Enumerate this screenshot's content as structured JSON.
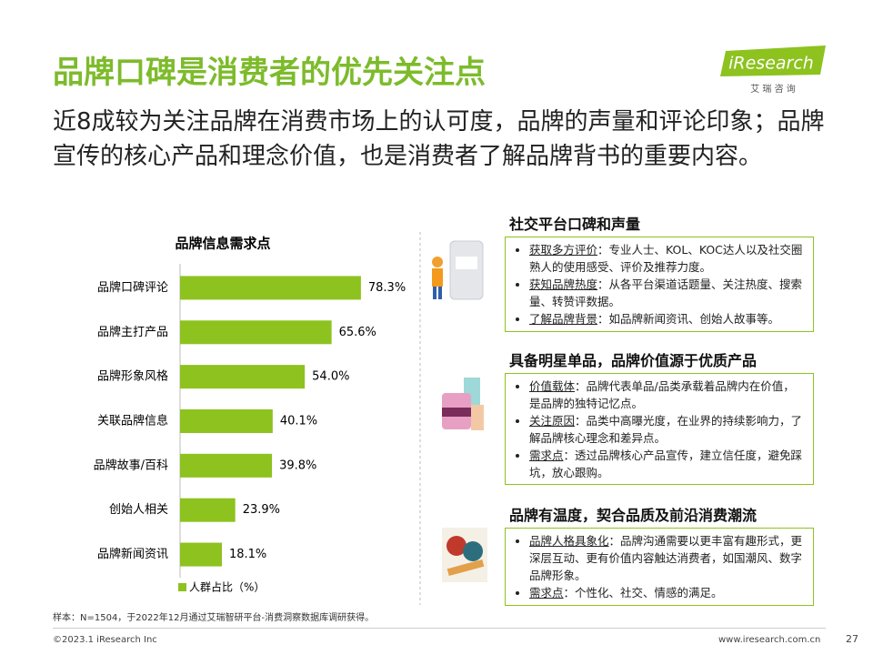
{
  "title": "品牌口碑是消费者的优先关注点",
  "subtitle": "近8成较为关注品牌在消费市场上的认可度，品牌的声量和评论印象；品牌宣传的核心产品和理念价值，也是消费者了解品牌背书的重要内容。",
  "logo": {
    "name": "iResearch",
    "tagline": "艾 瑞 咨 询"
  },
  "chart_data": {
    "type": "bar",
    "orientation": "horizontal",
    "title": "品牌信息需求点",
    "categories": [
      "品牌口碑评论",
      "品牌主打产品",
      "品牌形象风格",
      "关联品牌信息",
      "品牌故事/百科",
      "创始人相关",
      "品牌新闻资讯"
    ],
    "series": [
      {
        "name": "人群占比（%）",
        "color": "#8dc21f",
        "values": [
          78.3,
          65.6,
          54,
          40.1,
          39.8,
          23.9,
          18.1
        ],
        "value_labels": [
          "78.3%",
          "65.6%",
          "54.0%",
          "40.1%",
          "39.8%",
          "23.9%",
          "18.1%"
        ]
      }
    ],
    "xlim": [
      0,
      100
    ]
  },
  "sections": [
    {
      "heading": "社交平台口碑和声量",
      "items": [
        {
          "term": "获取多方评价",
          "text": "：专业人士、KOL、KOC达人以及社交圈熟人的使用感受、评价及推荐力度。"
        },
        {
          "term": "获知品牌热度",
          "text": "：从各平台渠道话题量、关注热度、搜索量、转赞评数据。"
        },
        {
          "term": "了解品牌背景",
          "text": "：如品牌新闻资讯、创始人故事等。"
        }
      ]
    },
    {
      "heading": "具备明星单品，品牌价值源于优质产品",
      "items": [
        {
          "term": "价值载体",
          "text": "：品牌代表单品/品类承载着品牌内在价值，是品牌的独特记忆点。"
        },
        {
          "term": "关注原因",
          "text": "：品类中高曝光度，在业界的持续影响力，了解品牌核心理念和差异点。"
        },
        {
          "term": "需求点",
          "text": "：透过品牌核心产品宣传，建立信任度，避免踩坑，放心跟购。"
        }
      ]
    },
    {
      "heading": "品牌有温度，契合品质及前沿消费潮流",
      "items": [
        {
          "term": "品牌人格具象化",
          "text": "：品牌沟通需要以更丰富有趣形式，更深层互动、更有价值内容触达消费者，如国潮风、数字品牌形象。"
        },
        {
          "term": "需求点",
          "text": "：个性化、社交、情感的满足。"
        }
      ]
    }
  ],
  "footer": {
    "note": "样本：N=1504，于2022年12月通过艾瑞智研平台-消费洞察数据库调研获得。",
    "copyright": "©2023.1 iResearch Inc",
    "url": "www.iresearch.com.cn",
    "page": "27"
  }
}
